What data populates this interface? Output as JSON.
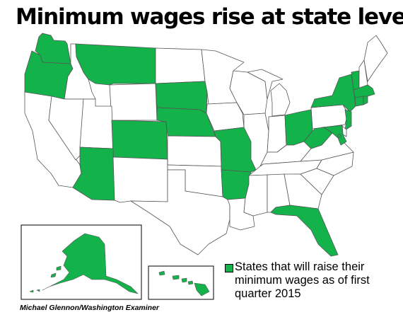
{
  "title": "Minimum wages rise at state level",
  "legend": {
    "label": "States that will raise their minimum wages as of first quarter 2015",
    "color": "#14b24a"
  },
  "credit": "Michael Glennon/Washington Examiner",
  "colors": {
    "raise": "#14b24a",
    "other": "#ffffff",
    "border": "#555555"
  },
  "states_raising": [
    "WA",
    "OR",
    "MT",
    "SD",
    "NE",
    "CO",
    "AZ",
    "MO",
    "AR",
    "OH",
    "WV",
    "FL",
    "NY",
    "VT",
    "MA",
    "RI",
    "CT",
    "NJ",
    "MD",
    "DC",
    "AK",
    "HI"
  ],
  "states_not_raising": [
    "CA",
    "NV",
    "ID",
    "UT",
    "WY",
    "NM",
    "ND",
    "KS",
    "OK",
    "TX",
    "MN",
    "IA",
    "WI",
    "IL",
    "MI",
    "IN",
    "KY",
    "TN",
    "MS",
    "AL",
    "GA",
    "SC",
    "NC",
    "VA",
    "PA",
    "DE",
    "NH",
    "ME",
    "LA"
  ]
}
